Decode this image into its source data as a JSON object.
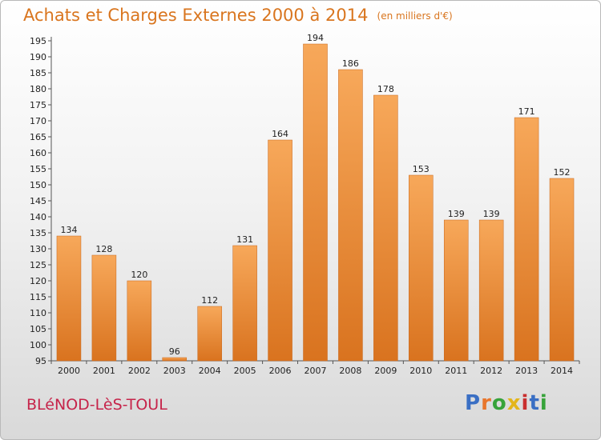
{
  "header": {
    "title": "Achats et Charges Externes 2000 à 2014",
    "subtitle": "(en milliers d'€)"
  },
  "footer": {
    "commune": "BLéNOD-LèS-TOUL",
    "logo": "Proxiti",
    "logo_colors": [
      "#3a6fc4",
      "#e8762c",
      "#37a33a",
      "#e3b51b",
      "#c92f2f",
      "#3a6fc4",
      "#37a33a"
    ]
  },
  "colors": {
    "bar_light": "#f7a85a",
    "bar_dark": "#d9731f",
    "accent": "#d9751e",
    "commune": "#c6244a"
  },
  "chart_data": {
    "type": "bar",
    "categories": [
      "2000",
      "2001",
      "2002",
      "2003",
      "2004",
      "2005",
      "2006",
      "2007",
      "2008",
      "2009",
      "2010",
      "2011",
      "2012",
      "2013",
      "2014"
    ],
    "values": [
      134,
      128,
      120,
      96,
      112,
      131,
      164,
      194,
      186,
      178,
      153,
      139,
      139,
      171,
      152
    ],
    "title": "Achats et Charges Externes 2000 à 2014",
    "subtitle": "(en milliers d'€)",
    "xlabel": "",
    "ylabel": "",
    "ylim": [
      95,
      195
    ],
    "ytick_step": 5,
    "grid": false,
    "legend": "none"
  }
}
